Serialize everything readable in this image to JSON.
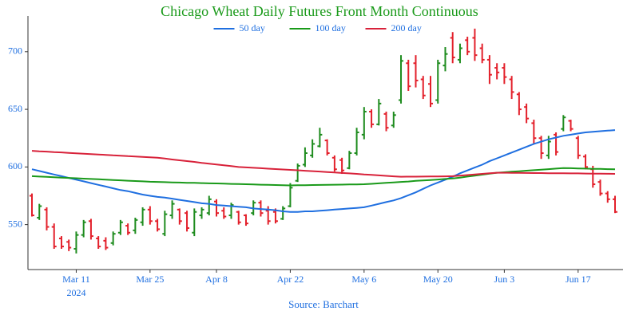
{
  "chart_data": {
    "type": "ohlc",
    "title": "Chicago Wheat Daily Futures Front Month Continuous",
    "source": "Source: Barchart",
    "year": "2024",
    "categories": [
      null,
      null,
      null,
      null,
      null,
      null,
      "Mar 11",
      null,
      null,
      null,
      null,
      null,
      null,
      null,
      null,
      null,
      "Mar 25",
      null,
      null,
      null,
      null,
      null,
      null,
      null,
      null,
      "Apr 8",
      null,
      null,
      null,
      null,
      null,
      null,
      null,
      null,
      null,
      "Apr 22",
      null,
      null,
      null,
      null,
      null,
      null,
      null,
      null,
      null,
      "May 6",
      null,
      null,
      null,
      null,
      null,
      null,
      null,
      null,
      null,
      "May 20",
      null,
      null,
      null,
      null,
      null,
      null,
      null,
      null,
      "Jun 3",
      null,
      null,
      null,
      null,
      null,
      null,
      null,
      null,
      null,
      "Jun 17",
      null,
      null,
      null,
      null,
      null
    ],
    "open": [
      575,
      556,
      563,
      548,
      538,
      535,
      529,
      541,
      553,
      538,
      536,
      534,
      543,
      549,
      545,
      552,
      563,
      553,
      542,
      558,
      563,
      560,
      543,
      558,
      560,
      570,
      562,
      558,
      561,
      558,
      560,
      569,
      562,
      561,
      555,
      566,
      588,
      602,
      610,
      618,
      623,
      608,
      606,
      599,
      612,
      628,
      648,
      637,
      646,
      636,
      658,
      690,
      690,
      676,
      672,
      658,
      688,
      712,
      693,
      710,
      712,
      703,
      693,
      686,
      686,
      676,
      663,
      652,
      638,
      625,
      610,
      628,
      633,
      640,
      625,
      609,
      598,
      587,
      577,
      572
    ],
    "high": [
      577,
      568,
      565,
      551,
      540,
      537,
      544,
      554,
      555,
      540,
      539,
      544,
      554,
      551,
      556,
      565,
      566,
      555,
      562,
      571,
      564,
      562,
      564,
      565,
      575,
      572,
      565,
      569,
      562,
      559,
      571,
      571,
      566,
      564,
      566,
      586,
      603,
      617,
      624,
      634,
      624,
      610,
      608,
      614,
      634,
      652,
      650,
      659,
      648,
      648,
      697,
      693,
      697,
      679,
      679,
      693,
      704,
      717,
      707,
      713,
      720,
      707,
      697,
      690,
      690,
      679,
      665,
      655,
      641,
      627,
      627,
      630,
      645,
      641,
      627,
      611,
      601,
      589,
      579,
      575
    ],
    "low": [
      557,
      554,
      545,
      529,
      529,
      527,
      525,
      539,
      537,
      529,
      528,
      532,
      541,
      541,
      542,
      549,
      550,
      544,
      540,
      555,
      550,
      544,
      540,
      555,
      558,
      557,
      555,
      555,
      550,
      549,
      558,
      557,
      550,
      551,
      554,
      565,
      587,
      600,
      608,
      617,
      610,
      596,
      594,
      598,
      610,
      624,
      634,
      636,
      631,
      634,
      655,
      666,
      669,
      659,
      652,
      655,
      683,
      690,
      690,
      697,
      692,
      690,
      672,
      676,
      672,
      659,
      645,
      638,
      620,
      607,
      607,
      610,
      631,
      631,
      607,
      598,
      582,
      575,
      569,
      560
    ],
    "close": [
      558,
      566,
      548,
      531,
      531,
      530,
      541,
      552,
      540,
      531,
      530,
      542,
      552,
      543,
      554,
      563,
      553,
      546,
      559,
      568,
      553,
      547,
      561,
      563,
      572,
      560,
      557,
      567,
      552,
      551,
      569,
      560,
      553,
      553,
      564,
      582,
      601,
      612,
      620,
      628,
      612,
      598,
      597,
      612,
      630,
      648,
      637,
      655,
      634,
      645,
      692,
      670,
      675,
      662,
      655,
      690,
      698,
      695,
      703,
      700,
      697,
      693,
      680,
      682,
      678,
      665,
      650,
      642,
      625,
      612,
      622,
      613,
      643,
      633,
      610,
      600,
      585,
      577,
      572,
      561
    ],
    "up_color": "#1e8c1e",
    "down_color": "#e3202b",
    "series": [
      {
        "name": "50 day",
        "color": "#1f6fe0",
        "values": [
          598,
          596.5,
          595,
          593.5,
          592,
          590.5,
          589,
          587.5,
          586,
          584.5,
          583,
          581.5,
          580,
          579,
          577.5,
          576,
          575,
          574,
          573.5,
          572.5,
          571.5,
          570.5,
          569.5,
          568.5,
          568,
          567,
          566.5,
          566,
          565.5,
          565,
          564,
          563.5,
          563,
          562.5,
          561.5,
          561,
          561,
          561.5,
          561.5,
          562,
          562.5,
          563,
          563.5,
          564,
          564.5,
          565,
          566.5,
          568,
          569.5,
          571,
          573,
          575.5,
          578,
          581,
          584,
          586.5,
          589,
          591.5,
          594.5,
          597,
          599.5,
          602,
          605,
          607.5,
          610,
          612.5,
          615,
          617.5,
          620,
          622,
          624,
          625.5,
          627,
          628,
          629,
          630,
          630.5,
          631,
          631.5,
          632
        ]
      },
      {
        "name": "100 day",
        "color": "#1a9a1a",
        "values": [
          592,
          591.7,
          591.4,
          591.1,
          590.8,
          590.5,
          590.2,
          589.9,
          589.6,
          589.3,
          589,
          588.7,
          588.4,
          588.1,
          587.8,
          587.5,
          587.2,
          587,
          586.8,
          586.6,
          586.5,
          586.3,
          586.2,
          586,
          585.8,
          585.7,
          585.5,
          585.3,
          585.2,
          585,
          584.8,
          584.6,
          584.5,
          584.3,
          584.1,
          584,
          584.1,
          584.2,
          584.3,
          584.4,
          584.5,
          584.6,
          584.7,
          584.8,
          584.9,
          585,
          585.4,
          585.8,
          586.2,
          586.6,
          587,
          587.4,
          587.9,
          588.3,
          588.7,
          589.1,
          589.6,
          590,
          590.8,
          591.7,
          592.5,
          593.3,
          594.2,
          595,
          595.4,
          595.9,
          596.3,
          596.8,
          597.2,
          597.7,
          598.1,
          598.6,
          599,
          598.9,
          598.7,
          598.6,
          598.4,
          598.3,
          598.1,
          598
        ]
      },
      {
        "name": "200 day",
        "color": "#d8223a",
        "values": [
          614,
          613.6,
          613.3,
          612.9,
          612.6,
          612.2,
          611.9,
          611.5,
          611.2,
          610.8,
          610.5,
          610.1,
          609.8,
          609.4,
          609.1,
          608.7,
          608.4,
          608,
          607.3,
          606.5,
          605.8,
          605.1,
          604.4,
          603.6,
          602.9,
          602.2,
          601.5,
          600.7,
          600,
          599.6,
          599.3,
          598.9,
          598.5,
          598.2,
          597.8,
          597.5,
          597.1,
          596.7,
          596.4,
          596,
          595.6,
          595.2,
          594.8,
          594.4,
          594,
          593.5,
          593.1,
          592.7,
          592.3,
          591.9,
          591.5,
          591.6,
          591.6,
          591.7,
          591.8,
          591.8,
          591.9,
          592,
          592.5,
          593,
          593.5,
          594,
          594.5,
          595,
          595,
          594.9,
          594.9,
          594.8,
          594.7,
          594.7,
          594.6,
          594.6,
          594.5,
          594.4,
          594.4,
          594.3,
          594.2,
          594.2,
          594.1,
          594
        ]
      }
    ],
    "ylim": [
      511,
      731
    ],
    "yticks": [
      550,
      600,
      650,
      700
    ],
    "legend": "top"
  }
}
